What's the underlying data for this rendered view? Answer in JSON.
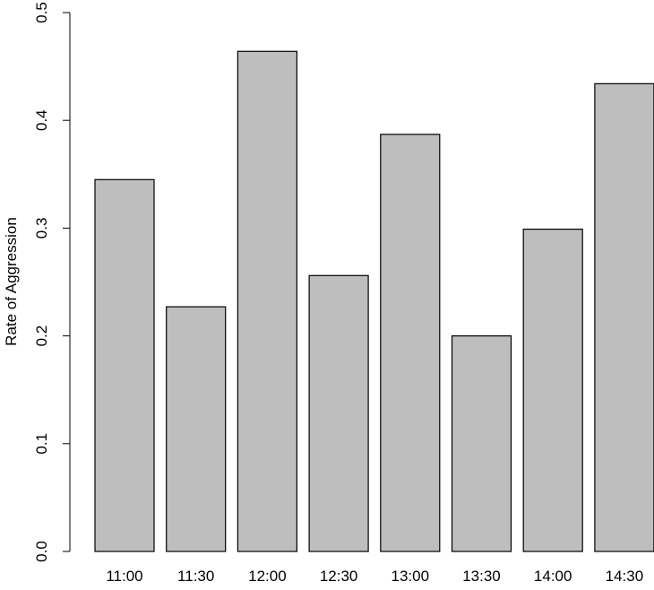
{
  "chart_data": {
    "type": "bar",
    "categories": [
      "11:00",
      "11:30",
      "12:00",
      "12:30",
      "13:00",
      "13:30",
      "14:00",
      "14:30"
    ],
    "values": [
      0.345,
      0.227,
      0.464,
      0.256,
      0.387,
      0.2,
      0.299,
      0.434
    ],
    "title": "",
    "xlabel": "",
    "ylabel": "Rate of Aggression",
    "ylim": [
      0,
      0.5
    ],
    "yticks": [
      "0.0",
      "0.1",
      "0.2",
      "0.3",
      "0.4",
      "0.5"
    ],
    "grid": false,
    "bar_color": "#bebebe",
    "edge_color": "#000000"
  }
}
